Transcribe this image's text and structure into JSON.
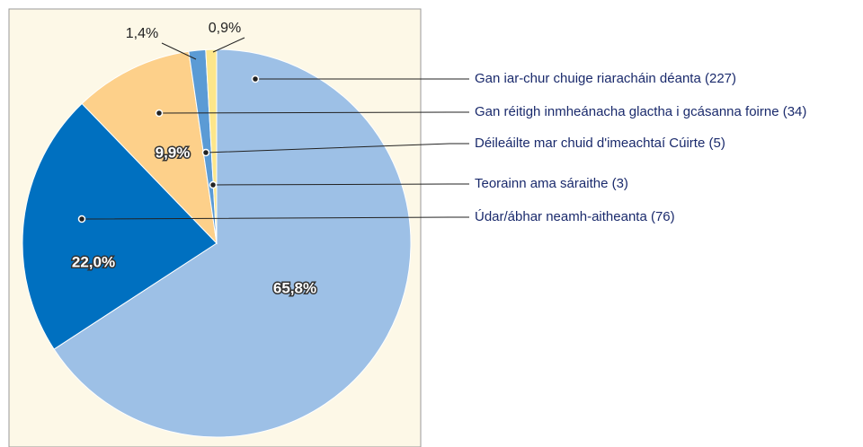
{
  "chart_data": {
    "type": "pie",
    "categories": [
      "Gan iar-chur chuige riaracháin déanta (227)",
      "Údar/ábhar neamh-aitheanta (76)",
      "Gan réitigh inmheánacha glactha i gcásanna foirne (34)",
      "Déileáilte mar chuid d'imeachtaí Cúirte (5)",
      "Teorainn ama sáraithe (3)"
    ],
    "values": [
      65.8,
      22.0,
      9.9,
      1.4,
      0.9
    ],
    "value_labels": [
      "65,8%",
      "22,0%",
      "9,9%",
      "1,4%",
      "0,9%"
    ],
    "colors": [
      "#9dc0e6",
      "#0070c0",
      "#fdd08a",
      "#5b9bd5",
      "#fde68a"
    ]
  }
}
